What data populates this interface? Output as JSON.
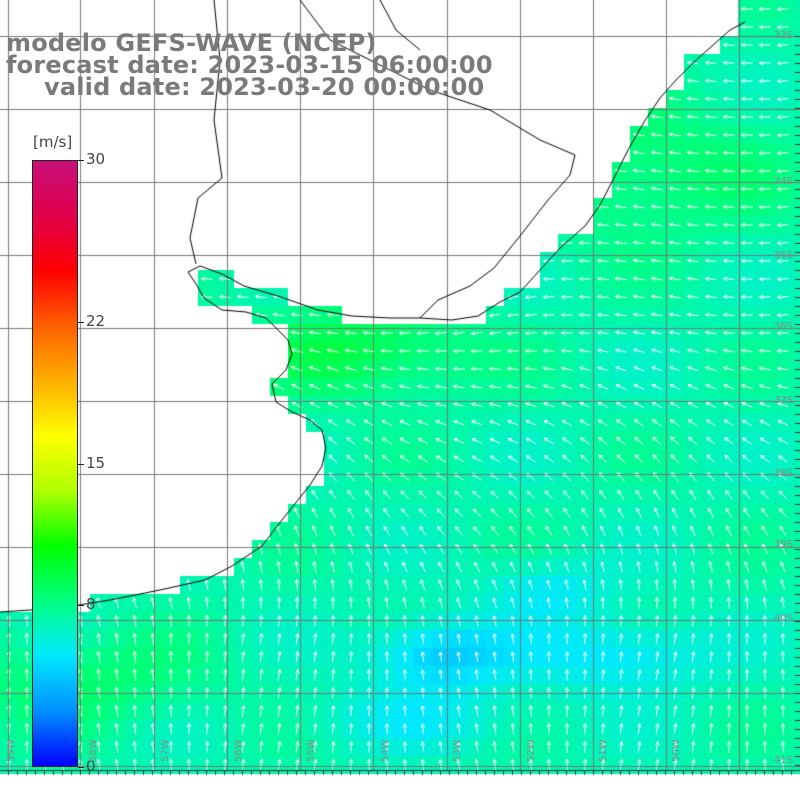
{
  "title": {
    "line1": "modelo GEFS-WAVE (NCEP)",
    "line2": "forecast date: 2023-03-15 06:00:00",
    "line3": "valid date: 2023-03-20 00:00:00"
  },
  "colorbar": {
    "unit": "[m/s]",
    "min": 0,
    "max": 30,
    "ticks": [
      "30",
      "22",
      "15",
      "8",
      "0"
    ],
    "colors": [
      "#0000ff",
      "#0090ff",
      "#00e8ff",
      "#00ff80",
      "#00ff00",
      "#b0ff00",
      "#ffff00",
      "#ffb000",
      "#ff6000",
      "#ff0000",
      "#e0004a",
      "#c8107a"
    ]
  },
  "map": {
    "land_color": "#ffffff",
    "grid_color": "#777777",
    "coast_color": "#000000",
    "lat_labels": [
      "33S",
      "34S",
      "35S",
      "36S",
      "37S",
      "38S",
      "39S",
      "40S",
      "41S"
    ],
    "lon_labels": [
      "59W",
      "58W",
      "57W",
      "56W",
      "55W",
      "54W",
      "53W",
      "52W",
      "51W",
      "50W"
    ],
    "field": "wind speed and direction",
    "typical_speed_range_ms": [
      3,
      12
    ]
  }
}
